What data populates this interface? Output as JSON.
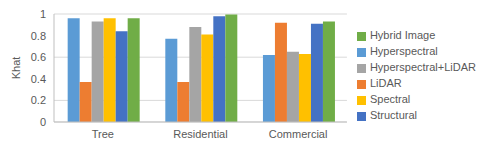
{
  "chart_data": {
    "type": "bar",
    "y_label": "Khat",
    "categories": [
      "Tree",
      "Residential",
      "Commercial"
    ],
    "series": [
      {
        "name": "Hyperspectral",
        "color": "#5b9bd5",
        "values": [
          0.96,
          0.77,
          0.62
        ]
      },
      {
        "name": "LiDAR",
        "color": "#ed7d31",
        "values": [
          0.37,
          0.37,
          0.92
        ]
      },
      {
        "name": "Hyperspectral+LiDAR",
        "color": "#a5a5a5",
        "values": [
          0.93,
          0.88,
          0.65
        ]
      },
      {
        "name": "Spectral",
        "color": "#ffc000",
        "values": [
          0.96,
          0.81,
          0.63
        ]
      },
      {
        "name": "Structural",
        "color": "#4472c4",
        "values": [
          0.84,
          0.98,
          0.91
        ]
      },
      {
        "name": "Hybrid Image",
        "color": "#70ad47",
        "values": [
          0.96,
          0.995,
          0.93
        ]
      }
    ],
    "ylim": [
      0,
      1
    ],
    "yticks": [
      0,
      0.2,
      0.4,
      0.6,
      0.8,
      1
    ],
    "grid": true,
    "legend": "right"
  }
}
